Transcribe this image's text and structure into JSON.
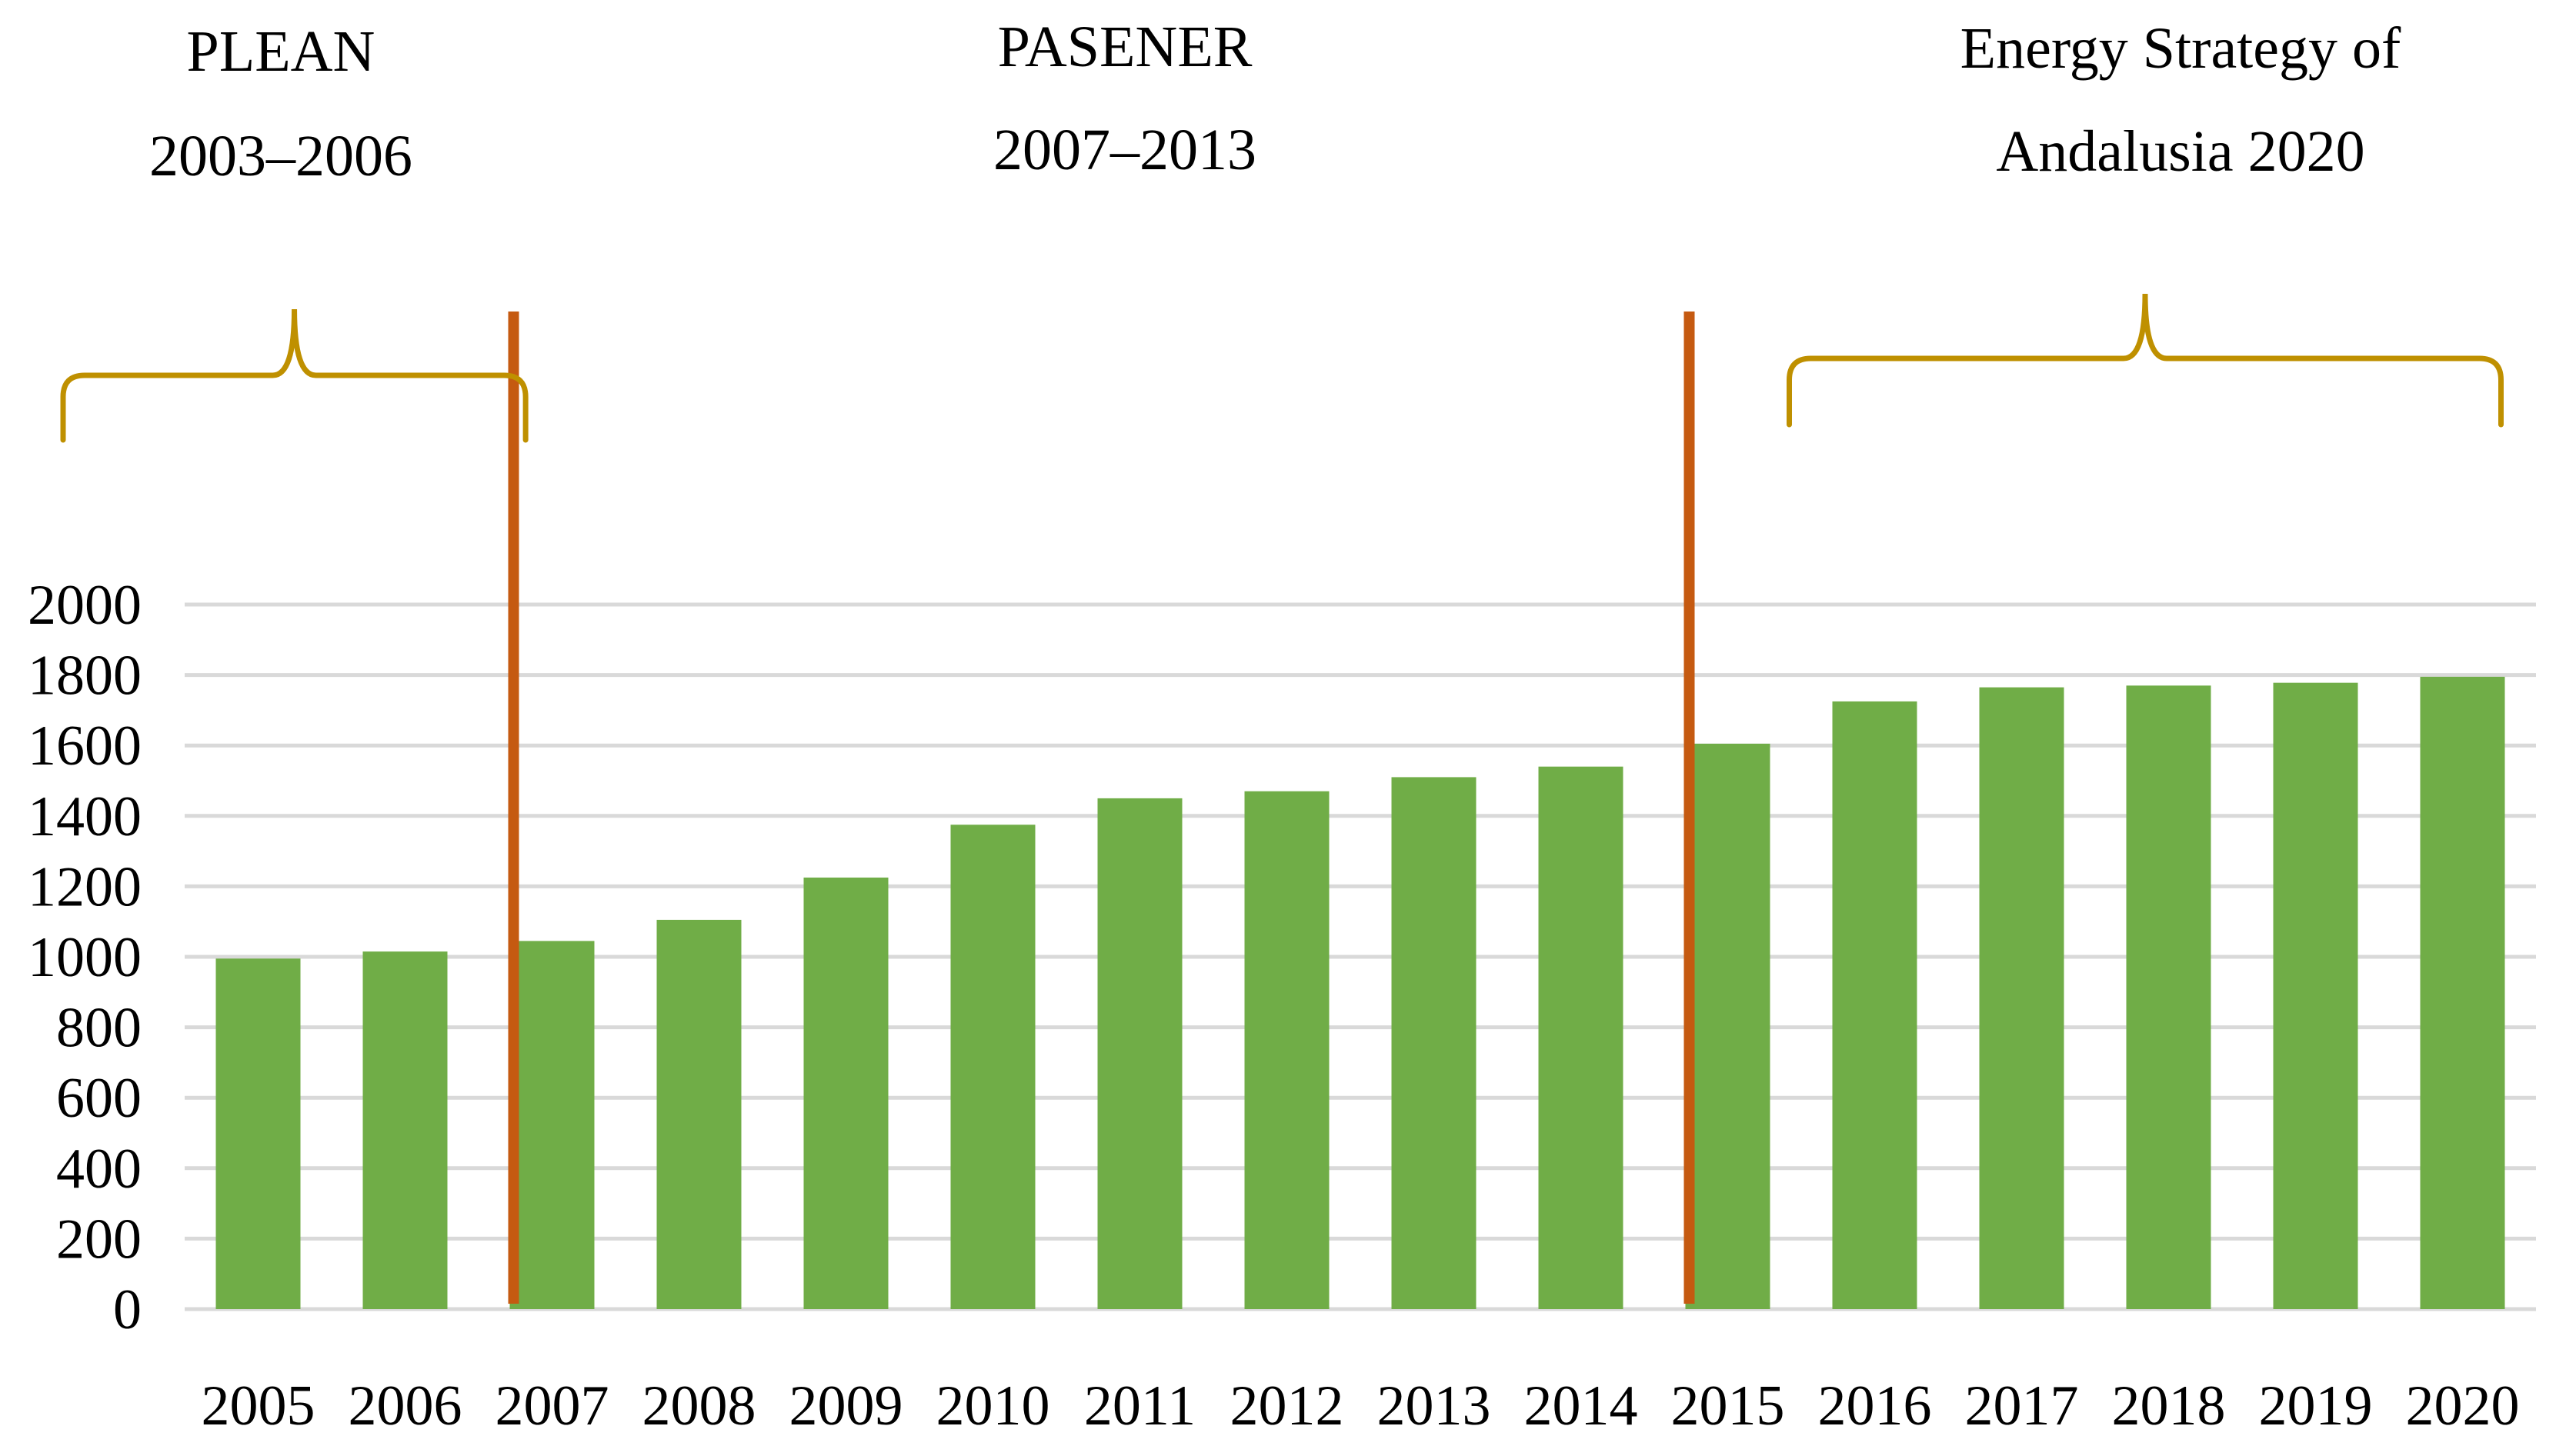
{
  "chart_data": {
    "type": "bar",
    "title": "",
    "xlabel": "",
    "ylabel": "",
    "categories": [
      "2005",
      "2006",
      "2007",
      "2008",
      "2009",
      "2010",
      "2011",
      "2012",
      "2013",
      "2014",
      "2015",
      "2016",
      "2017",
      "2018",
      "2019",
      "2020"
    ],
    "values": [
      995,
      1015,
      1045,
      1105,
      1225,
      1375,
      1450,
      1470,
      1510,
      1540,
      1605,
      1725,
      1765,
      1770,
      1778,
      1795
    ],
    "ylim": [
      0,
      2000
    ],
    "yticks": [
      0,
      200,
      400,
      600,
      800,
      1000,
      1200,
      1400,
      1600,
      1800,
      2000
    ],
    "grid": true,
    "colors": {
      "bar": "#70ad47",
      "divider": "#c55a11",
      "bracket": "#bf9000"
    },
    "periods": [
      {
        "name": "PLEAN",
        "years": "2003–2006",
        "start": "2005",
        "end": "2006",
        "bracket": true
      },
      {
        "name": "PASENER",
        "years": "2007–2013",
        "start": "2007",
        "end": "2014",
        "bracket": false
      },
      {
        "name": "Energy Strategy of",
        "years": "Andalusia 2020",
        "start": "2015",
        "end": "2020",
        "bracket": true
      }
    ],
    "dividers_at": [
      "2007",
      "2015"
    ]
  }
}
